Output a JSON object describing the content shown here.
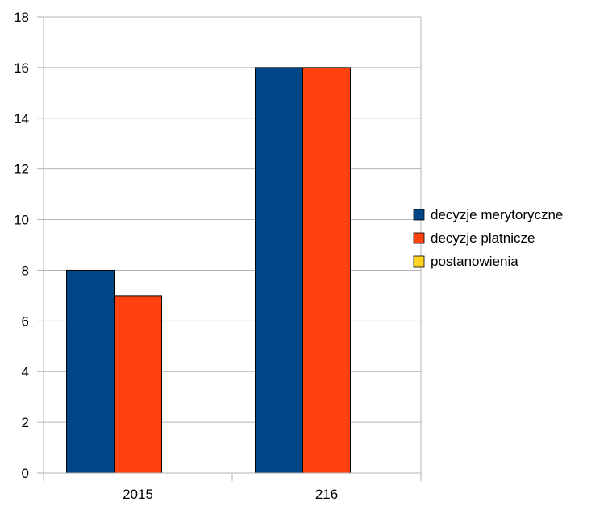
{
  "chart_data": {
    "type": "bar",
    "categories": [
      "2015",
      "216"
    ],
    "series": [
      {
        "name": "decyzje merytoryczne",
        "values": [
          8,
          16
        ],
        "color": "#004586"
      },
      {
        "name": "decyzje platnicze",
        "values": [
          7,
          16
        ],
        "color": "#ff420e"
      },
      {
        "name": "postanowienia",
        "values": [
          0,
          0
        ],
        "color": "#ffd320"
      }
    ],
    "ylim": [
      0,
      18
    ],
    "yticks": [
      0,
      2,
      4,
      6,
      8,
      10,
      12,
      14,
      16,
      18
    ],
    "grid": true,
    "legend_position": "right"
  }
}
